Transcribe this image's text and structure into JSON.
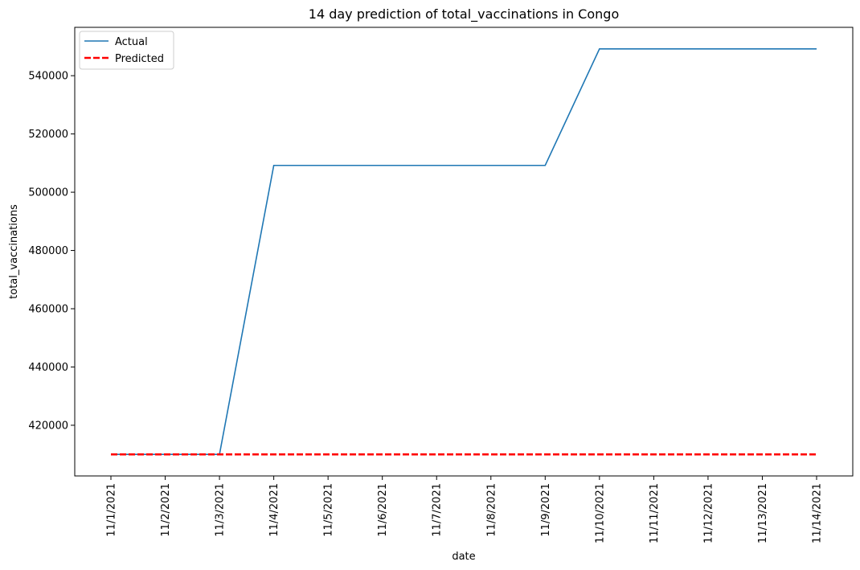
{
  "chart_data": {
    "type": "line",
    "title": "14 day prediction of total_vaccinations in Congo",
    "xlabel": "date",
    "ylabel": "total_vaccinations",
    "categories": [
      "11/1/2021",
      "11/2/2021",
      "11/3/2021",
      "11/4/2021",
      "11/5/2021",
      "11/6/2021",
      "11/7/2021",
      "11/8/2021",
      "11/9/2021",
      "11/10/2021",
      "11/11/2021",
      "11/12/2021",
      "11/13/2021",
      "11/14/2021"
    ],
    "yticks": [
      420000,
      440000,
      460000,
      480000,
      500000,
      520000,
      540000
    ],
    "ylim": [
      402600,
      556600
    ],
    "grid": false,
    "legend_position": "top-left",
    "series": [
      {
        "name": "Actual",
        "color": "#1f77b4",
        "style": "solid",
        "values": [
          410000,
          410000,
          410000,
          509200,
          509200,
          509200,
          509200,
          509200,
          509200,
          549200,
          549200,
          549200,
          549200,
          549200
        ]
      },
      {
        "name": "Predicted",
        "color": "#ff0000",
        "style": "dashed",
        "values": [
          410000,
          410000,
          410000,
          410000,
          410000,
          410000,
          410000,
          410000,
          410000,
          410000,
          410000,
          410000,
          410000,
          410000
        ]
      }
    ]
  }
}
